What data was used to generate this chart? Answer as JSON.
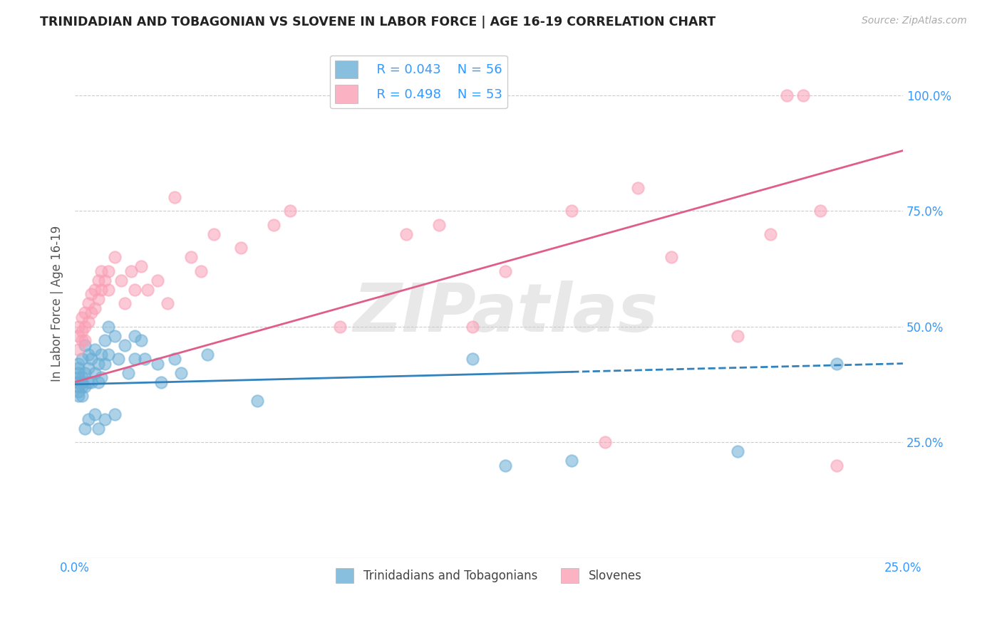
{
  "title": "TRINIDADIAN AND TOBAGONIAN VS SLOVENE IN LABOR FORCE | AGE 16-19 CORRELATION CHART",
  "source": "Source: ZipAtlas.com",
  "ylabel": "In Labor Force | Age 16-19",
  "xlim": [
    0.0,
    0.25
  ],
  "ylim": [
    0.0,
    1.1
  ],
  "x_ticks": [
    0.0,
    0.025,
    0.05,
    0.075,
    0.1,
    0.125,
    0.15,
    0.175,
    0.2,
    0.225,
    0.25
  ],
  "x_tick_labels": [
    "0.0%",
    "",
    "",
    "",
    "",
    "",
    "",
    "",
    "",
    "",
    "25.0%"
  ],
  "y_ticks": [
    0.25,
    0.5,
    0.75,
    1.0
  ],
  "y_tick_labels": [
    "25.0%",
    "50.0%",
    "75.0%",
    "100.0%"
  ],
  "legend_r1": "R = 0.043",
  "legend_n1": "N = 56",
  "legend_r2": "R = 0.498",
  "legend_n2": "N = 53",
  "color_blue": "#6baed6",
  "color_pink": "#fa9fb5",
  "color_blue_line": "#3182bd",
  "color_pink_line": "#e05c8a",
  "color_grid": "#cccccc",
  "watermark": "ZIPatlas",
  "blue_x": [
    0.001,
    0.001,
    0.001,
    0.001,
    0.001,
    0.001,
    0.001,
    0.001,
    0.002,
    0.002,
    0.002,
    0.002,
    0.002,
    0.003,
    0.003,
    0.003,
    0.004,
    0.004,
    0.004,
    0.005,
    0.005,
    0.006,
    0.006,
    0.007,
    0.007,
    0.008,
    0.008,
    0.009,
    0.009,
    0.01,
    0.01,
    0.012,
    0.013,
    0.015,
    0.016,
    0.018,
    0.018,
    0.02,
    0.021,
    0.025,
    0.026,
    0.03,
    0.032,
    0.04,
    0.055,
    0.12,
    0.13,
    0.15,
    0.2,
    0.23,
    0.003,
    0.004,
    0.006,
    0.007,
    0.009,
    0.012
  ],
  "blue_y": [
    0.38,
    0.4,
    0.37,
    0.36,
    0.39,
    0.41,
    0.35,
    0.42,
    0.43,
    0.39,
    0.37,
    0.35,
    0.38,
    0.46,
    0.4,
    0.37,
    0.44,
    0.41,
    0.38,
    0.43,
    0.38,
    0.45,
    0.4,
    0.42,
    0.38,
    0.44,
    0.39,
    0.47,
    0.42,
    0.5,
    0.44,
    0.48,
    0.43,
    0.46,
    0.4,
    0.48,
    0.43,
    0.47,
    0.43,
    0.42,
    0.38,
    0.43,
    0.4,
    0.44,
    0.34,
    0.43,
    0.2,
    0.21,
    0.23,
    0.42,
    0.28,
    0.3,
    0.31,
    0.28,
    0.3,
    0.31
  ],
  "pink_x": [
    0.001,
    0.001,
    0.001,
    0.002,
    0.002,
    0.002,
    0.003,
    0.003,
    0.003,
    0.004,
    0.004,
    0.005,
    0.005,
    0.006,
    0.006,
    0.007,
    0.007,
    0.008,
    0.008,
    0.009,
    0.01,
    0.01,
    0.012,
    0.014,
    0.015,
    0.017,
    0.018,
    0.02,
    0.022,
    0.025,
    0.028,
    0.03,
    0.035,
    0.038,
    0.042,
    0.05,
    0.06,
    0.065,
    0.08,
    0.1,
    0.11,
    0.12,
    0.13,
    0.15,
    0.16,
    0.17,
    0.18,
    0.2,
    0.21,
    0.215,
    0.22,
    0.225,
    0.23
  ],
  "pink_y": [
    0.48,
    0.45,
    0.5,
    0.52,
    0.49,
    0.47,
    0.53,
    0.5,
    0.47,
    0.55,
    0.51,
    0.57,
    0.53,
    0.58,
    0.54,
    0.6,
    0.56,
    0.62,
    0.58,
    0.6,
    0.62,
    0.58,
    0.65,
    0.6,
    0.55,
    0.62,
    0.58,
    0.63,
    0.58,
    0.6,
    0.55,
    0.78,
    0.65,
    0.62,
    0.7,
    0.67,
    0.72,
    0.75,
    0.5,
    0.7,
    0.72,
    0.5,
    0.62,
    0.75,
    0.25,
    0.8,
    0.65,
    0.48,
    0.7,
    1.0,
    1.0,
    0.75,
    0.2
  ],
  "blue_line_x0": 0.0,
  "blue_line_y0": 0.375,
  "blue_line_x1": 0.25,
  "blue_line_y1": 0.42,
  "blue_line_split": 0.15,
  "pink_line_x0": 0.0,
  "pink_line_y0": 0.38,
  "pink_line_x1": 0.25,
  "pink_line_y1": 0.88
}
